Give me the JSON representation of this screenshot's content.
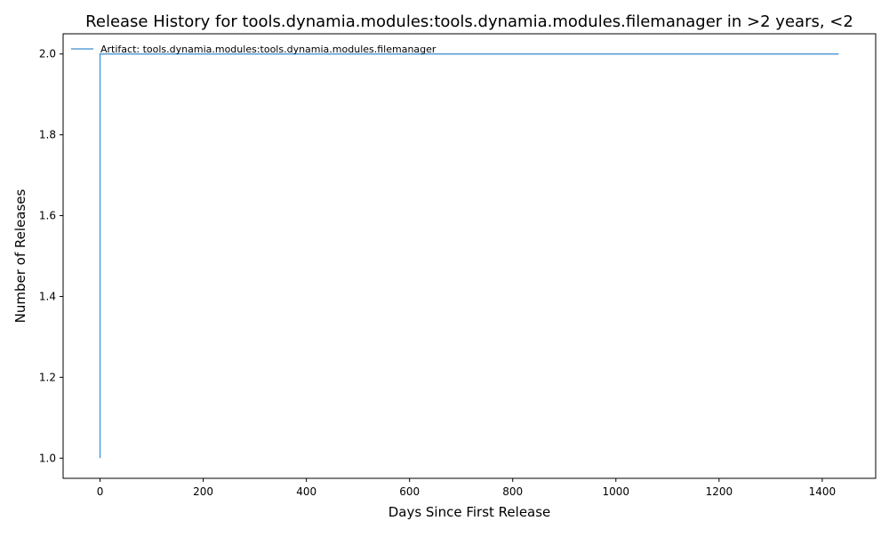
{
  "chart_data": {
    "type": "line",
    "title": "Release History for tools.dynamia.modules:tools.dynamia.modules.filemanager in >2 years, <2",
    "xlabel": "Days Since First Release",
    "ylabel": "Number of Releases",
    "xlim": [
      -71.6,
      1503.6
    ],
    "ylim": [
      0.95,
      2.05
    ],
    "x_ticks": [
      0,
      200,
      400,
      600,
      800,
      1000,
      1200,
      1400
    ],
    "y_ticks": [
      1.0,
      1.2,
      1.4,
      1.6,
      1.8,
      2.0
    ],
    "x_tick_labels": [
      "0",
      "200",
      "400",
      "600",
      "800",
      "1000",
      "1200",
      "1400"
    ],
    "y_tick_labels": [
      "1.0",
      "1.2",
      "1.4",
      "1.6",
      "1.8",
      "2.0"
    ],
    "grid": false,
    "legend_position": "top-left",
    "series": [
      {
        "name": "Artifact: tools.dynamia.modules:tools.dynamia.modules.filemanager",
        "color": "#5aa0d8",
        "x": [
          0,
          0,
          1432
        ],
        "y": [
          1,
          2,
          2
        ]
      }
    ]
  }
}
